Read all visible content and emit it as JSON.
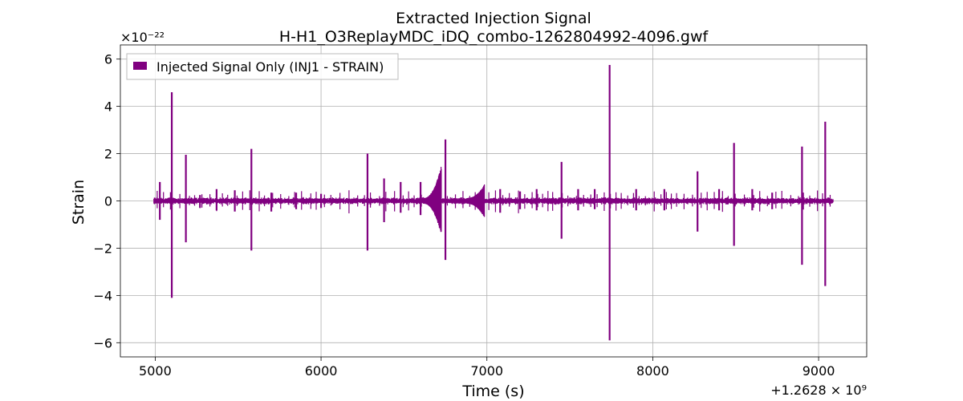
{
  "chart_data": {
    "type": "line",
    "title": "Extracted Injection Signal",
    "subtitle": "H-H1_O3ReplayMDC_iDQ_combo-1262804992-4096.gwf",
    "xlabel": "Time (s)",
    "ylabel": "Strain",
    "y_multiplier": "×10⁻²²",
    "x_offset": "+1.2628 × 10⁹",
    "xlim": [
      4790,
      5300
    ],
    "xlim_offset_note": "",
    "x_range": [
      4790,
      9290
    ],
    "ylim": [
      -6.6,
      6.6
    ],
    "x_ticks": [
      5000,
      6000,
      7000,
      8000,
      9000
    ],
    "x_tick_labels": [
      "5000",
      "6000",
      "7000",
      "8000",
      "9000"
    ],
    "y_ticks": [
      -6,
      -4,
      -2,
      0,
      2,
      4,
      6
    ],
    "y_tick_labels": [
      "−6",
      "−4",
      "−2",
      "0",
      "2",
      "4",
      "6"
    ],
    "grid": true,
    "legend_position": "top-left",
    "color": "#800080",
    "series": [
      {
        "name": "Injected Signal Only (INJ1 - STRAIN)",
        "signal_span": [
          4992,
          9088
        ],
        "baseline_amplitude": 0.12,
        "spikes": [
          {
            "t": 5028,
            "max": 0.8,
            "min": -0.8
          },
          {
            "t": 5100,
            "max": 4.6,
            "min": -4.1
          },
          {
            "t": 5185,
            "max": 1.95,
            "min": -1.75
          },
          {
            "t": 5270,
            "max": 0.25,
            "min": -0.3
          },
          {
            "t": 5370,
            "max": 0.5,
            "min": -0.4
          },
          {
            "t": 5480,
            "max": 0.45,
            "min": -0.45
          },
          {
            "t": 5580,
            "max": 2.2,
            "min": -2.1
          },
          {
            "t": 5700,
            "max": 0.35,
            "min": -0.45
          },
          {
            "t": 5850,
            "max": 0.35,
            "min": -0.35
          },
          {
            "t": 6000,
            "max": 0.3,
            "min": -0.3
          },
          {
            "t": 6280,
            "max": 2.0,
            "min": -2.1
          },
          {
            "t": 6380,
            "max": 0.95,
            "min": -0.9
          },
          {
            "t": 6480,
            "max": 0.8,
            "min": -0.5
          },
          {
            "t": 6600,
            "max": 0.8,
            "min": -0.6
          },
          {
            "t": 6750,
            "max": 2.6,
            "min": -2.5
          },
          {
            "t": 7080,
            "max": 0.5,
            "min": -0.5
          },
          {
            "t": 7200,
            "max": 0.4,
            "min": -0.35
          },
          {
            "t": 7300,
            "max": 0.5,
            "min": -0.4
          },
          {
            "t": 7450,
            "max": 1.65,
            "min": -1.6
          },
          {
            "t": 7550,
            "max": 0.5,
            "min": -0.4
          },
          {
            "t": 7650,
            "max": 0.5,
            "min": -0.35
          },
          {
            "t": 7740,
            "max": 5.75,
            "min": -5.9
          },
          {
            "t": 7900,
            "max": 0.5,
            "min": -0.4
          },
          {
            "t": 8070,
            "max": 0.5,
            "min": -0.4
          },
          {
            "t": 8270,
            "max": 1.25,
            "min": -1.3
          },
          {
            "t": 8400,
            "max": 0.5,
            "min": -0.4
          },
          {
            "t": 8490,
            "max": 2.45,
            "min": -1.9
          },
          {
            "t": 8600,
            "max": 0.5,
            "min": -0.4
          },
          {
            "t": 8720,
            "max": 0.35,
            "min": -0.35
          },
          {
            "t": 8900,
            "max": 2.3,
            "min": -2.7
          },
          {
            "t": 9040,
            "max": 3.35,
            "min": -3.6
          }
        ],
        "chirps": [
          {
            "t_start": 6620,
            "t_peak": 6725,
            "peak": 1.5,
            "trough": -1.45
          },
          {
            "t_start": 6880,
            "t_peak": 6985,
            "peak": 0.7,
            "trough": -0.7
          }
        ]
      }
    ]
  }
}
